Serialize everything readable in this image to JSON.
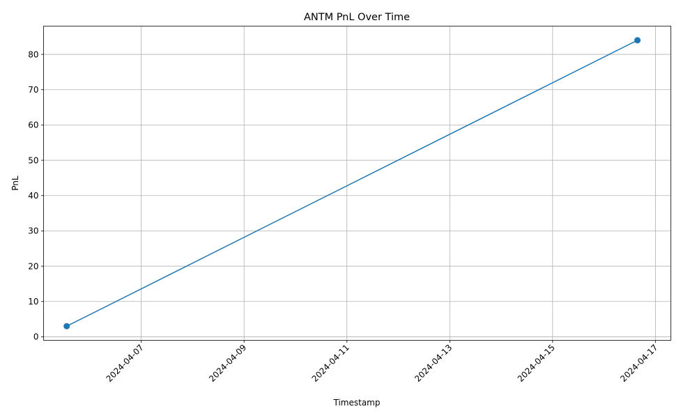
{
  "chart_data": {
    "type": "line",
    "title": "ANTM PnL Over Time",
    "xlabel": "Timestamp",
    "ylabel": "PnL",
    "x_type": "date",
    "x_ticks": [
      "2024-04-07",
      "2024-04-09",
      "2024-04-11",
      "2024-04-13",
      "2024-04-15",
      "2024-04-17"
    ],
    "y_ticks": [
      0,
      10,
      20,
      30,
      40,
      50,
      60,
      70,
      80
    ],
    "xlim": [
      "2024-04-05 02:24",
      "2024-04-17 07:12"
    ],
    "ylim": [
      -1.0,
      88.0
    ],
    "grid": true,
    "series": [
      {
        "color": "#1f77b4",
        "marker": "circle",
        "x": [
          "2024-04-05 13:12",
          "2024-04-16 15:36"
        ],
        "y": [
          3,
          84
        ]
      }
    ]
  }
}
